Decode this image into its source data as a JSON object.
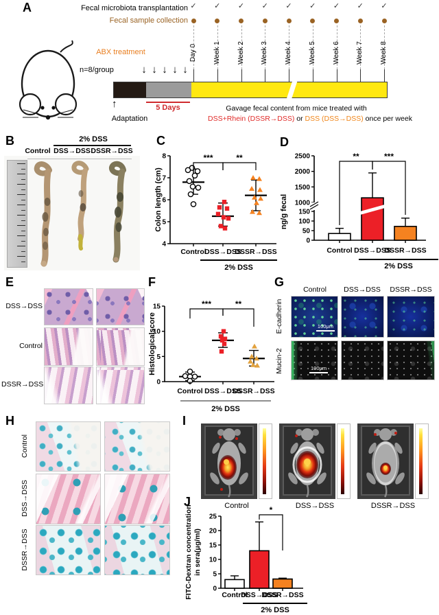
{
  "colors": {
    "red": "#ec2027",
    "orange": "#f58220",
    "yellow": "#ffe812",
    "brown": "#9a6324",
    "sig_red": "#cf2a2e",
    "abx_orange": "#e87d1e"
  },
  "panel_a": {
    "label": "A",
    "fmt_label": "Fecal microbiota transplantation",
    "fsc_label": "Fecal sample collection",
    "check": "✓",
    "timepoints": [
      "Day 0",
      "Week 1",
      "Week 2",
      "Week 3",
      "Week 4",
      "Week 5",
      "Week 6",
      "Week 7",
      "Week 8"
    ],
    "abx_label": "ABX treatment",
    "n_label": "n=8/group",
    "five_days": "5 Days",
    "adaptation": "Adaptation",
    "gavage_line1": "Gavage fecal content from mice treated with",
    "gavage_red": "DSS+Rhein (DSSR→DSS)",
    "gavage_mid": " or ",
    "gavage_orange": "DSS (DSS→DSS)",
    "gavage_end": " once per week"
  },
  "panel_b": {
    "label": "B",
    "treatment_header": "2% DSS",
    "columns": [
      "Control",
      "DSS→DSS",
      "DSSR→DSS"
    ]
  },
  "panel_c": {
    "label": "C"
  },
  "panel_d": {
    "label": "D"
  },
  "panel_e": {
    "label": "E",
    "rows": [
      "DSS→DSS",
      "Control",
      "DSSR→DSS"
    ]
  },
  "panel_f": {
    "label": "F"
  },
  "panel_g": {
    "label": "G",
    "columns": [
      "Control",
      "DSS→DSS",
      "DSSR→DSS"
    ],
    "rows": [
      "E-cadherin",
      "Mucin-2"
    ],
    "scale_bar": "100μm"
  },
  "panel_h": {
    "label": "H",
    "rows": [
      "Control",
      "DSS→DSS",
      "DSSR→DSS"
    ]
  },
  "panel_i": {
    "label": "I",
    "columns": [
      "Control",
      "DSS→DSS",
      "DSSR→DSS"
    ]
  },
  "panel_j": {
    "label": "J"
  },
  "chart_data": [
    {
      "id": "C",
      "type": "scatter",
      "title": "",
      "ylabel": "Colon length (cm)",
      "ylim": [
        4,
        8
      ],
      "yticks": [
        4,
        5,
        6,
        7,
        8
      ],
      "categories": [
        "Control",
        "DSS→DSS",
        "DSSR→DSS"
      ],
      "series": [
        {
          "name": "Control",
          "marker": "circle",
          "color": "#000000",
          "fill": "open",
          "mean": 6.8,
          "err_low": 6.25,
          "err_high": 7.4,
          "points": [
            [
              -2,
              7.45
            ],
            [
              -8,
              7.35
            ],
            [
              6,
              7.3
            ],
            [
              2,
              7.1
            ],
            [
              -6,
              6.85
            ],
            [
              -1,
              6.6
            ],
            [
              7,
              6.55
            ],
            [
              -4,
              6.25
            ],
            [
              0,
              5.8
            ]
          ]
        },
        {
          "name": "DSS→DSS",
          "marker": "square",
          "color": "#ec2027",
          "fill": "solid",
          "mean": 5.25,
          "err_low": 4.8,
          "err_high": 5.85,
          "points": [
            [
              2,
              5.9
            ],
            [
              -5,
              5.65
            ],
            [
              6,
              5.6
            ],
            [
              -7,
              5.35
            ],
            [
              1,
              5.2
            ],
            [
              8,
              5.15
            ],
            [
              -3,
              4.8
            ],
            [
              3,
              4.7
            ]
          ]
        },
        {
          "name": "DSSR→DSS",
          "marker": "triangle",
          "color": "#f58220",
          "fill": "solid",
          "mean": 6.2,
          "err_low": 5.5,
          "err_high": 6.9,
          "points": [
            [
              -4,
              7.0
            ],
            [
              5,
              6.95
            ],
            [
              -6,
              6.5
            ],
            [
              6,
              6.45
            ],
            [
              -2,
              6.1
            ],
            [
              7,
              6.05
            ],
            [
              1,
              5.85
            ],
            [
              -5,
              5.45
            ],
            [
              5,
              5.4
            ]
          ]
        }
      ],
      "significance": [
        {
          "between": [
            0,
            1
          ],
          "label": "***"
        },
        {
          "between": [
            1,
            2
          ],
          "label": "**"
        }
      ],
      "group_underline": {
        "from": 1,
        "to": 2,
        "label": "2% DSS"
      }
    },
    {
      "id": "D",
      "type": "bar_broken",
      "ylabel": "ng/g fecal",
      "axis_lower": {
        "range": [
          0,
          150
        ],
        "ticks": [
          0,
          50,
          100,
          150
        ]
      },
      "axis_upper": {
        "range": [
          1000,
          2500
        ],
        "ticks": [
          1000,
          1500,
          2000,
          2500
        ]
      },
      "categories": [
        "Control",
        "DSS→DSS",
        "DSSR→DSS"
      ],
      "bars": [
        {
          "name": "Control",
          "value": 35,
          "err_high": 62,
          "fill": "#ffffff"
        },
        {
          "name": "DSS→DSS",
          "value": 1150,
          "err_high": 1950,
          "fill": "#ec2027"
        },
        {
          "name": "DSSR→DSS",
          "value": 72,
          "err_high": 115,
          "fill": "#f58220"
        }
      ],
      "significance": [
        {
          "between": [
            0,
            1
          ],
          "label": "**"
        },
        {
          "between": [
            1,
            2
          ],
          "label": "***"
        }
      ],
      "group_underline": {
        "from": 1,
        "to": 2,
        "label": "2% DSS"
      }
    },
    {
      "id": "F",
      "type": "scatter",
      "title": "",
      "ylabel": "Histologicalscore",
      "ylim": [
        0,
        15
      ],
      "yticks": [
        0,
        5,
        10,
        15
      ],
      "categories": [
        "Control",
        "DSS→DSS",
        "DSSR→DSS"
      ],
      "series": [
        {
          "name": "Control",
          "marker": "circle",
          "color": "#000000",
          "fill": "open",
          "mean": 1.0,
          "err_low": 0.2,
          "err_high": 1.9,
          "points": [
            [
              0,
              2.0
            ],
            [
              -7,
              1.1
            ],
            [
              7,
              1.0
            ],
            [
              0,
              1.0
            ],
            [
              0,
              0.15
            ]
          ]
        },
        {
          "name": "DSS→DSS",
          "marker": "square",
          "color": "#ec2027",
          "fill": "solid",
          "mean": 8.2,
          "err_low": 6.8,
          "err_high": 9.7,
          "points": [
            [
              1,
              10
            ],
            [
              -3,
              9
            ],
            [
              3,
              8.5
            ],
            [
              -1,
              8.2
            ],
            [
              2,
              7.5
            ],
            [
              -2,
              6
            ]
          ]
        },
        {
          "name": "DSSR→DSS",
          "marker": "triangle",
          "color": "#e2a23e",
          "fill": "solid",
          "mean": 4.6,
          "err_low": 3.1,
          "err_high": 6.2,
          "points": [
            [
              1,
              7
            ],
            [
              -3,
              5
            ],
            [
              4,
              4.6
            ],
            [
              -5,
              4
            ],
            [
              -1,
              3.3
            ],
            [
              5,
              3.2
            ]
          ]
        }
      ],
      "significance": [
        {
          "between": [
            0,
            1
          ],
          "label": "***"
        },
        {
          "between": [
            1,
            2
          ],
          "label": "**"
        }
      ],
      "group_underline": {
        "from": 1,
        "to": 2,
        "label": "2% DSS"
      }
    },
    {
      "id": "J",
      "type": "bar",
      "ylabel_lines": [
        "FITC-Dextran concentration",
        "in sera(μg/ml)"
      ],
      "ylim": [
        0,
        25
      ],
      "yticks": [
        0,
        5,
        10,
        15,
        20,
        25
      ],
      "categories": [
        "Control",
        "DSS→DSS",
        "DSSR→DSS"
      ],
      "bars": [
        {
          "name": "Control",
          "value": 3.0,
          "err_high": 4.3,
          "fill": "#ffffff"
        },
        {
          "name": "DSS→DSS",
          "value": 13.0,
          "err_high": 23.0,
          "fill": "#ec2027"
        },
        {
          "name": "DSSR→DSS",
          "value": 3.2,
          "err_high": 3.5,
          "fill": "#f58220"
        }
      ],
      "significance": [
        {
          "between": [
            1,
            2
          ],
          "label": "*"
        }
      ],
      "group_underline": {
        "from": 1,
        "to": 2,
        "label": "2% DSS"
      }
    }
  ]
}
